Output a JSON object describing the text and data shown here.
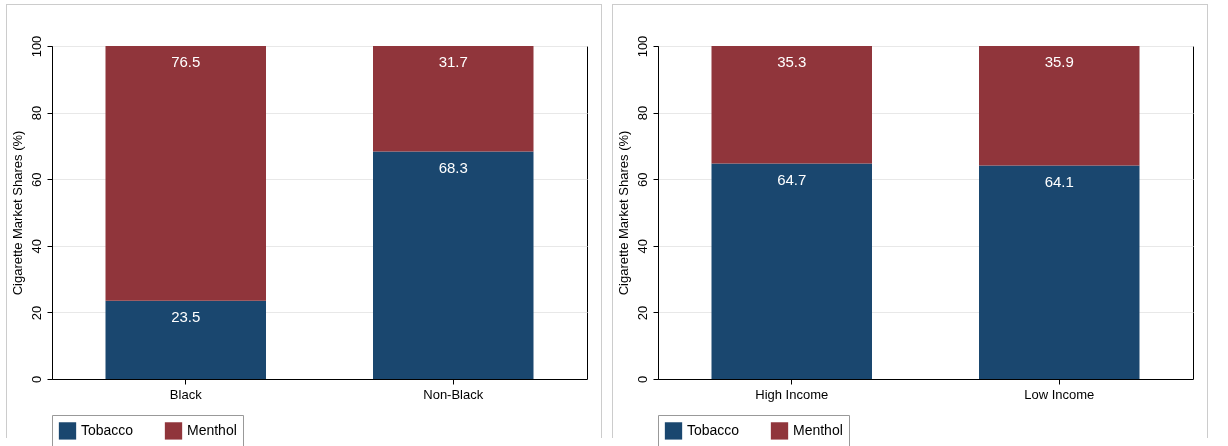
{
  "chart_data": [
    {
      "type": "bar",
      "stacked": true,
      "categories": [
        "Black",
        "Non-Black"
      ],
      "ylabel": "Cigarette Market Shares (%)",
      "ylim": [
        0,
        100
      ],
      "yticks": [
        0,
        20,
        40,
        60,
        80,
        100
      ],
      "grid": "y",
      "legend": "bottom",
      "data_labels": true,
      "series": [
        {
          "name": "Tobacco",
          "color": "#1a476f",
          "values": [
            23.5,
            68.3
          ]
        },
        {
          "name": "Menthol",
          "color": "#90353b",
          "values": [
            76.5,
            31.7
          ]
        }
      ]
    },
    {
      "type": "bar",
      "stacked": true,
      "categories": [
        "High Income",
        "Low Income"
      ],
      "ylabel": "Cigarette Market Shares (%)",
      "ylim": [
        0,
        100
      ],
      "yticks": [
        0,
        20,
        40,
        60,
        80,
        100
      ],
      "grid": "y",
      "legend": "bottom",
      "data_labels": true,
      "series": [
        {
          "name": "Tobacco",
          "color": "#1a476f",
          "values": [
            64.7,
            64.1
          ]
        },
        {
          "name": "Menthol",
          "color": "#90353b",
          "values": [
            35.3,
            35.9
          ]
        }
      ]
    }
  ]
}
